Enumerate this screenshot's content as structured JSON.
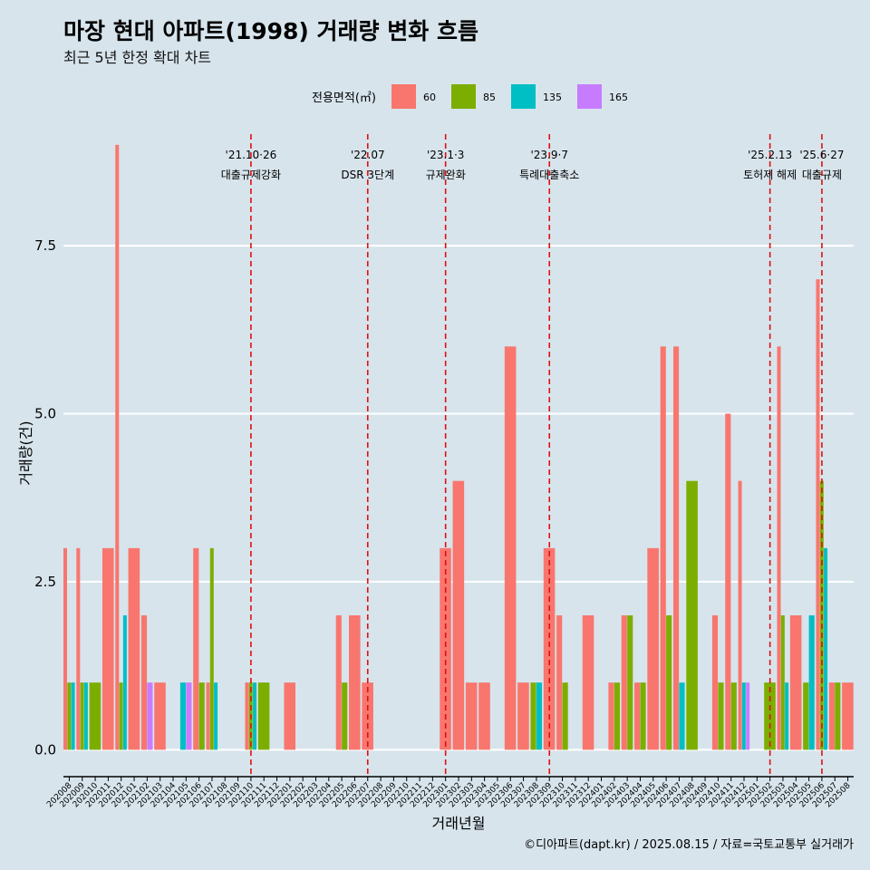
{
  "title": "마장 현대 아파트(1998) 거래량 변화 흐름",
  "subtitle": "최근 5년 한정 확대 차트",
  "caption": "©디아파트(dapt.kr) / 2025.08.15 / 자료=국토교통부 실거래가",
  "chart_data": {
    "type": "bar",
    "xlabel": "거래년월",
    "ylabel": "거래량(건)",
    "ylim": [
      -0.4,
      9.2
    ],
    "yticks": [
      {
        "v": 0,
        "label": "0.0"
      },
      {
        "v": 2.5,
        "label": "2.5"
      },
      {
        "v": 5,
        "label": "5.0"
      },
      {
        "v": 7.5,
        "label": "7.5"
      }
    ],
    "grid": true,
    "legend_title": "전용면적(㎡)",
    "legend_position": "top",
    "colors": {
      "60": "#F8766D",
      "85": "#7CAE00",
      "135": "#00BFC4",
      "165": "#C77CFF"
    },
    "categories": [
      "202008",
      "202009",
      "202010",
      "202011",
      "202012",
      "202101",
      "202102",
      "202103",
      "202104",
      "202105",
      "202106",
      "202107",
      "202108",
      "202109",
      "202110",
      "202111",
      "202112",
      "202201",
      "202202",
      "202203",
      "202204",
      "202205",
      "202206",
      "202207",
      "202208",
      "202209",
      "202210",
      "202211",
      "202212",
      "202301",
      "202302",
      "202303",
      "202304",
      "202305",
      "202306",
      "202307",
      "202308",
      "202309",
      "202310",
      "202311",
      "202312",
      "202401",
      "202402",
      "202403",
      "202404",
      "202405",
      "202406",
      "202407",
      "202408",
      "202409",
      "202410",
      "202411",
      "202412",
      "202501",
      "202502",
      "202503",
      "202504",
      "202505",
      "202506",
      "202507",
      "202508"
    ],
    "series": [
      {
        "name": "60",
        "values": [
          3,
          3,
          0,
          3,
          9,
          3,
          2,
          1,
          0,
          0,
          3,
          1,
          0,
          0,
          1,
          0,
          0,
          1,
          0,
          0,
          0,
          2,
          2,
          1,
          0,
          0,
          0,
          0,
          0,
          3,
          4,
          1,
          1,
          0,
          6,
          1,
          0,
          3,
          2,
          0,
          2,
          0,
          1,
          2,
          1,
          3,
          6,
          6,
          0,
          0,
          2,
          5,
          4,
          0,
          0,
          6,
          2,
          0,
          7,
          1,
          1
        ]
      },
      {
        "name": "85",
        "values": [
          1,
          1,
          1,
          0,
          1,
          0,
          0,
          0,
          0,
          0,
          1,
          3,
          0,
          0,
          1,
          1,
          0,
          0,
          0,
          0,
          0,
          1,
          0,
          0,
          0,
          0,
          0,
          0,
          0,
          0,
          0,
          0,
          0,
          0,
          0,
          0,
          1,
          0,
          1,
          0,
          0,
          0,
          1,
          2,
          1,
          0,
          2,
          0,
          4,
          0,
          1,
          1,
          0,
          0,
          1,
          2,
          0,
          1,
          4,
          1,
          0
        ]
      },
      {
        "name": "135",
        "values": [
          1,
          1,
          0,
          0,
          2,
          0,
          0,
          0,
          0,
          1,
          0,
          1,
          0,
          0,
          1,
          0,
          0,
          0,
          0,
          0,
          0,
          0,
          0,
          0,
          0,
          0,
          0,
          0,
          0,
          0,
          0,
          0,
          0,
          0,
          0,
          0,
          1,
          0,
          0,
          0,
          0,
          0,
          0,
          0,
          0,
          0,
          0,
          1,
          0,
          0,
          0,
          0,
          1,
          0,
          0,
          1,
          0,
          2,
          3,
          0,
          0
        ]
      },
      {
        "name": "165",
        "values": [
          0,
          0,
          0,
          0,
          0,
          0,
          1,
          0,
          0,
          1,
          0,
          0,
          0,
          0,
          0,
          0,
          0,
          0,
          0,
          0,
          0,
          0,
          0,
          0,
          0,
          0,
          0,
          0,
          0,
          0,
          0,
          0,
          0,
          0,
          0,
          0,
          0,
          0,
          0,
          0,
          0,
          0,
          0,
          0,
          0,
          0,
          0,
          0,
          0,
          0,
          0,
          0,
          1,
          0,
          0,
          0,
          0,
          0,
          0,
          0,
          0
        ]
      }
    ],
    "annotations": [
      {
        "at": 14,
        "date": "'21.10·26",
        "label": "대출규제강화"
      },
      {
        "at": 23,
        "date": "'22.07",
        "label": "DSR 3단계"
      },
      {
        "at": 29,
        "date": "'23.1·3",
        "label": "규제완화"
      },
      {
        "at": 37,
        "date": "'23.9·7",
        "label": "특례대출축소"
      },
      {
        "at": 54,
        "date": "'25.2.13",
        "label": "토허제 해제"
      },
      {
        "at": 58,
        "date": "'25.6·27",
        "label": "대출규제"
      }
    ]
  }
}
